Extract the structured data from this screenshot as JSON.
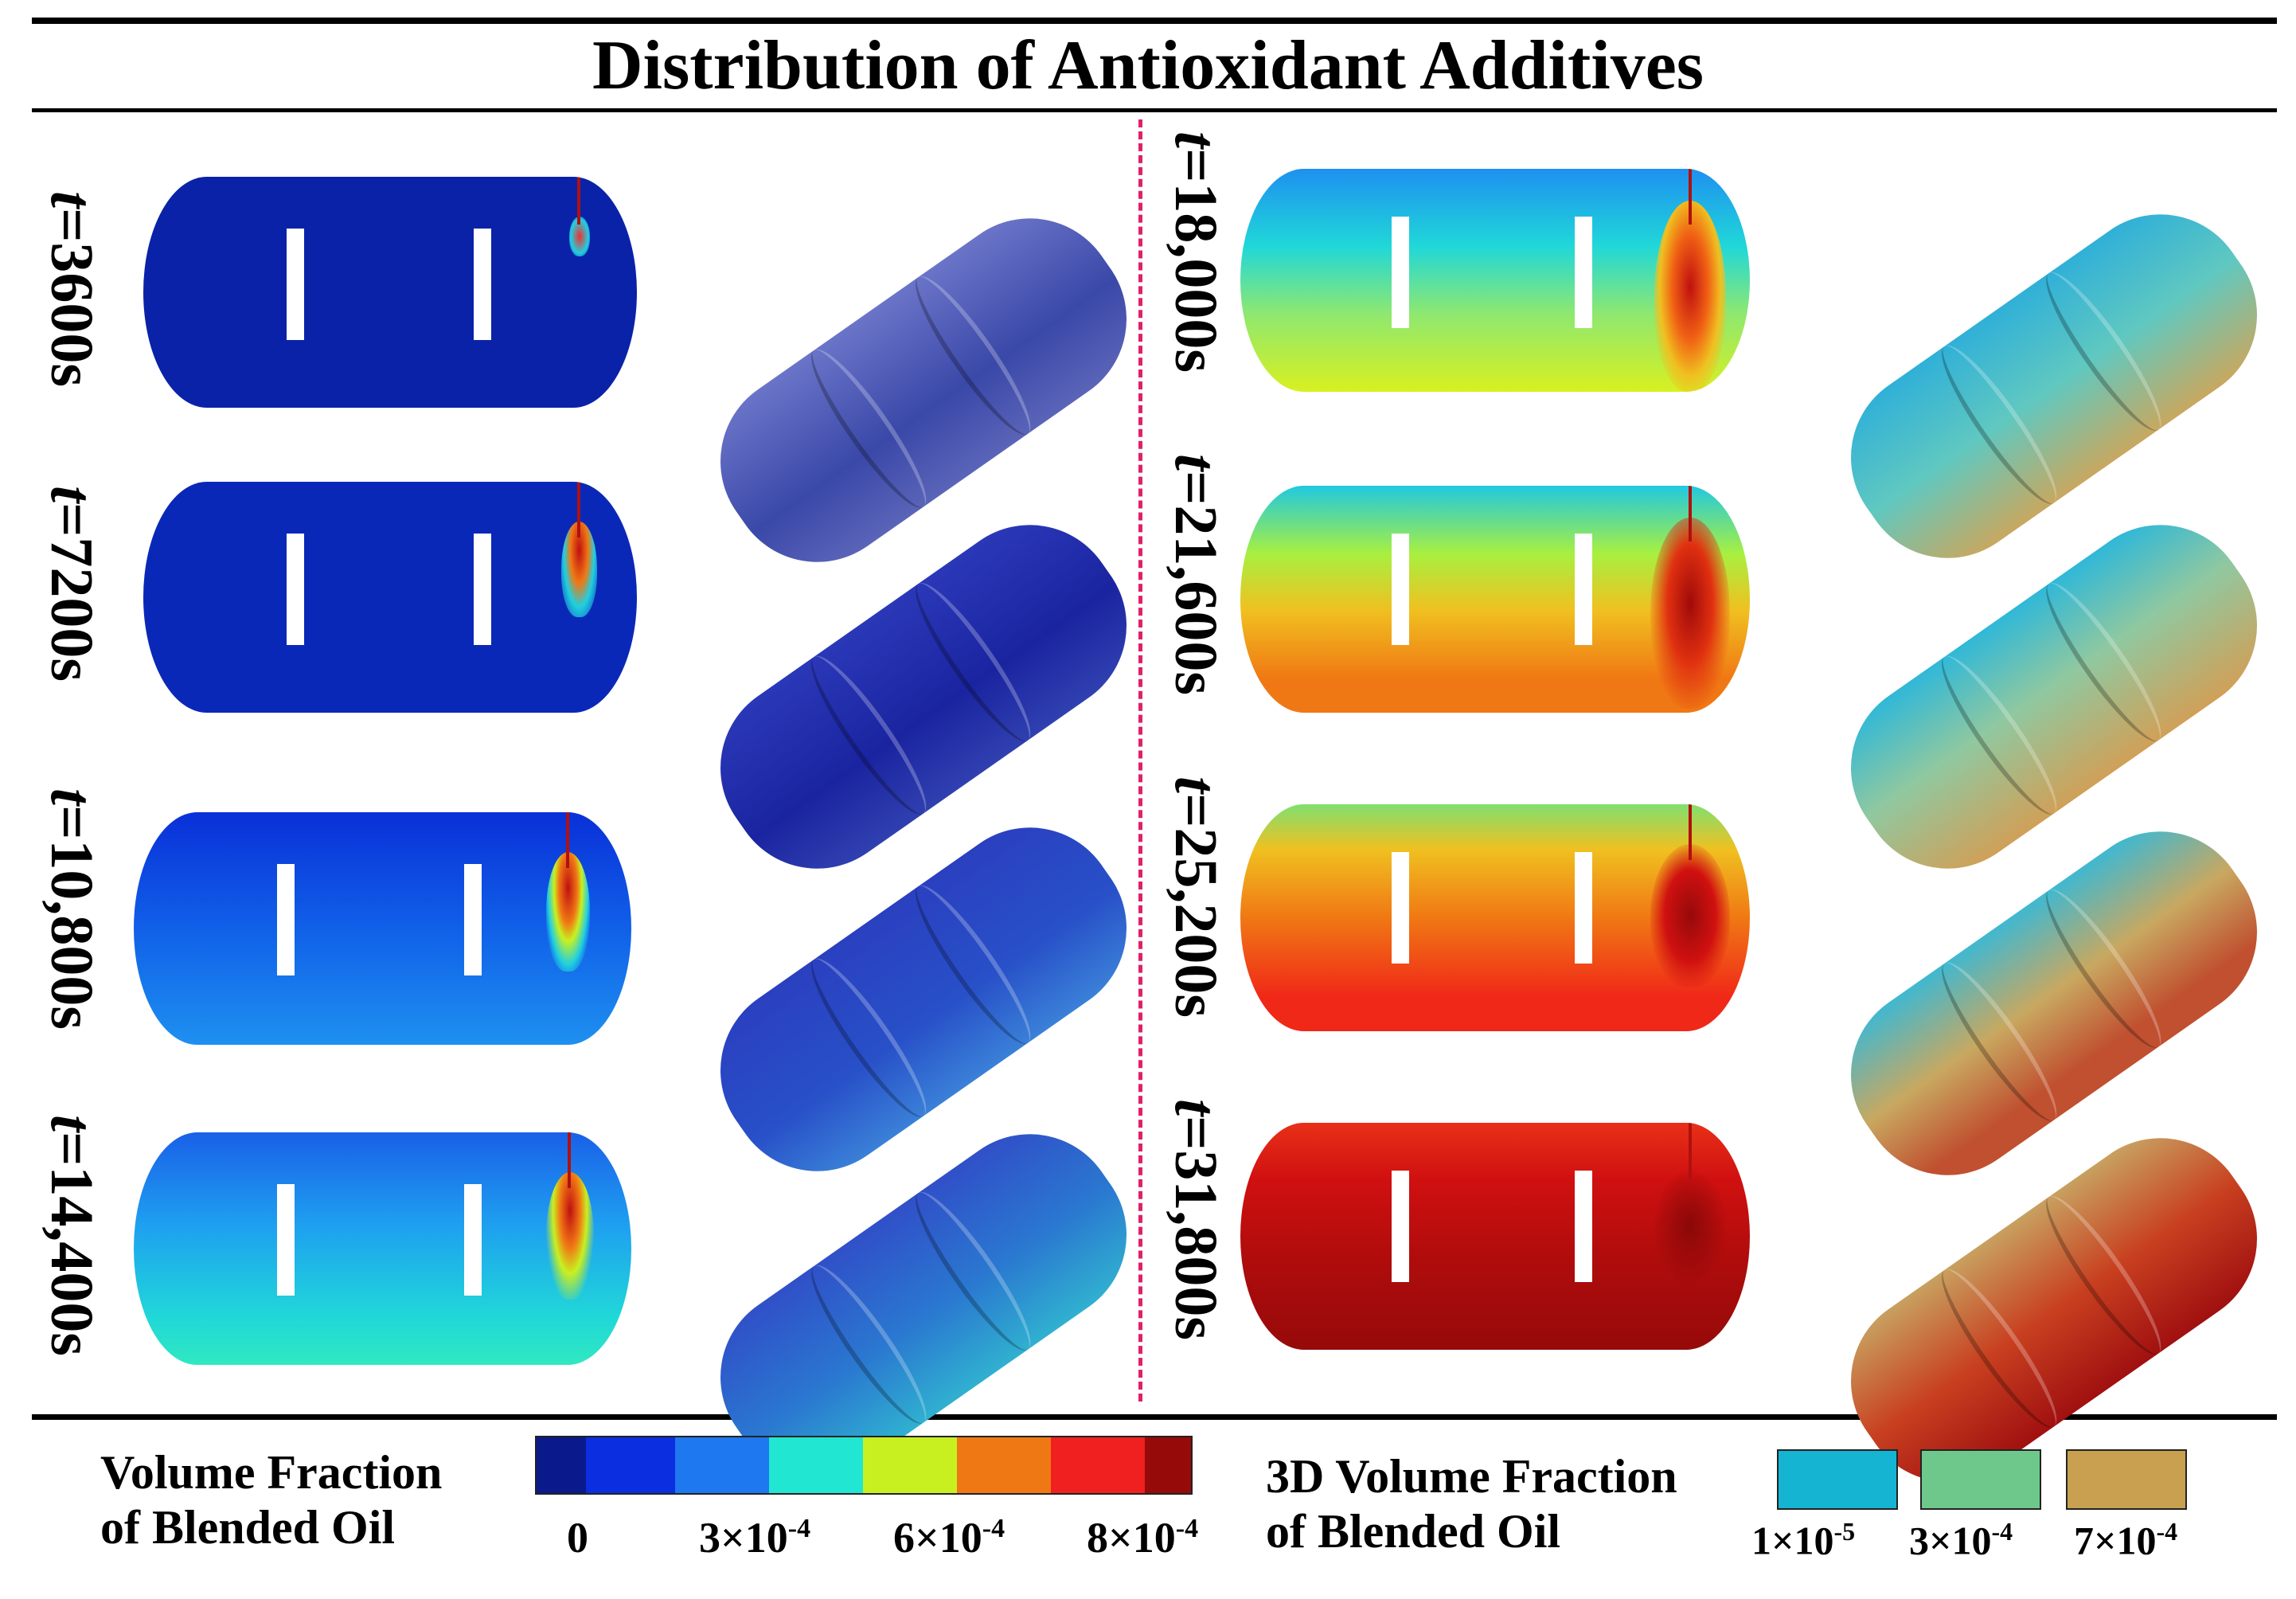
{
  "title": "Distribution of Antioxidant Additives",
  "panels": [
    {
      "time_prefix": "t",
      "time_value": "=3600s"
    },
    {
      "time_prefix": "t",
      "time_value": "=7200s"
    },
    {
      "time_prefix": "t",
      "time_value": "=10,800s"
    },
    {
      "time_prefix": "t",
      "time_value": "=14,400s"
    },
    {
      "time_prefix": "t",
      "time_value": "=18,000s"
    },
    {
      "time_prefix": "t",
      "time_value": "=21,600s"
    },
    {
      "time_prefix": "t",
      "time_value": "=25,200s"
    },
    {
      "time_prefix": "t",
      "time_value": "=31,800s"
    }
  ],
  "legend_2d": {
    "label_line1": "Volume Fraction",
    "label_line2": "of Blended Oil",
    "ticks": [
      "0",
      "3×10",
      "6×10",
      "8×10"
    ],
    "tick_exp": "-4",
    "colors": [
      "#0a1a8c",
      "#0a2ee0",
      "#1e78f0",
      "#20e6d2",
      "#c8f020",
      "#f07814",
      "#f02020",
      "#960a0a"
    ]
  },
  "legend_3d": {
    "label_line1": "3D Volume Fraction",
    "label_line2": "of Blended Oil",
    "swatches": [
      {
        "color": "#14b4d2",
        "mantissa": "1×10",
        "exp": "-5"
      },
      {
        "color": "#6ec88c",
        "mantissa": "3×10",
        "exp": "-4"
      },
      {
        "color": "#c8a050",
        "mantissa": "7×10",
        "exp": "-4"
      }
    ]
  }
}
